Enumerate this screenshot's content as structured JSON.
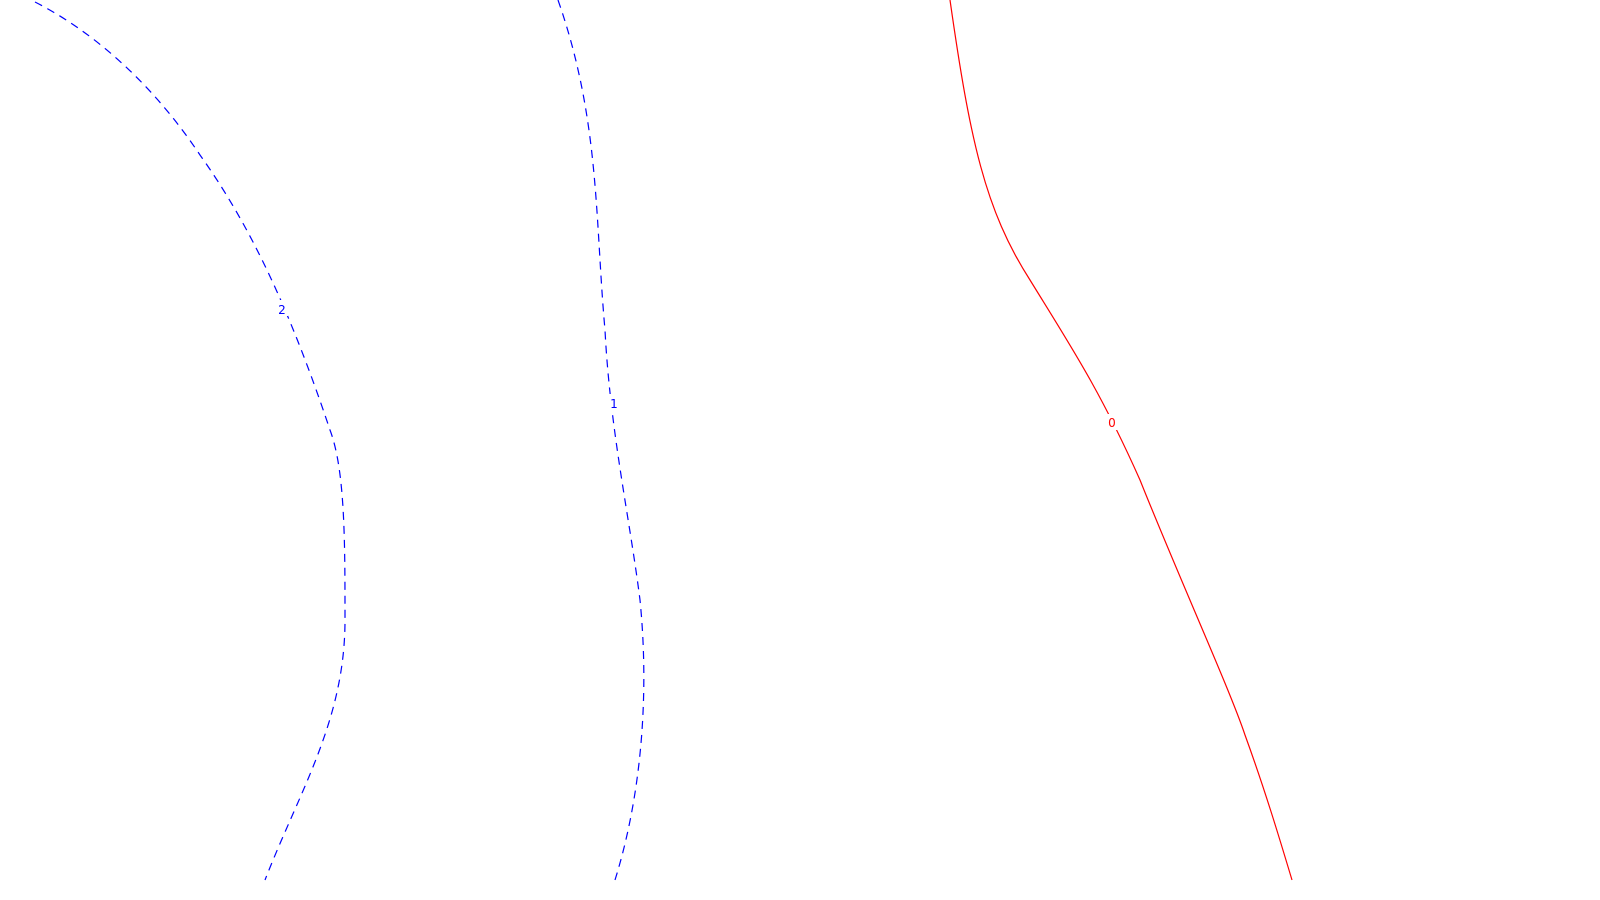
{
  "contours": [
    {
      "id": "contour-2",
      "label": "2",
      "color": "#0000ff",
      "style": "dashed"
    },
    {
      "id": "contour-1",
      "label": "1",
      "color": "#0000ff",
      "style": "dashed"
    },
    {
      "id": "contour-0",
      "label": "0",
      "color": "#ff0000",
      "style": "solid"
    }
  ]
}
